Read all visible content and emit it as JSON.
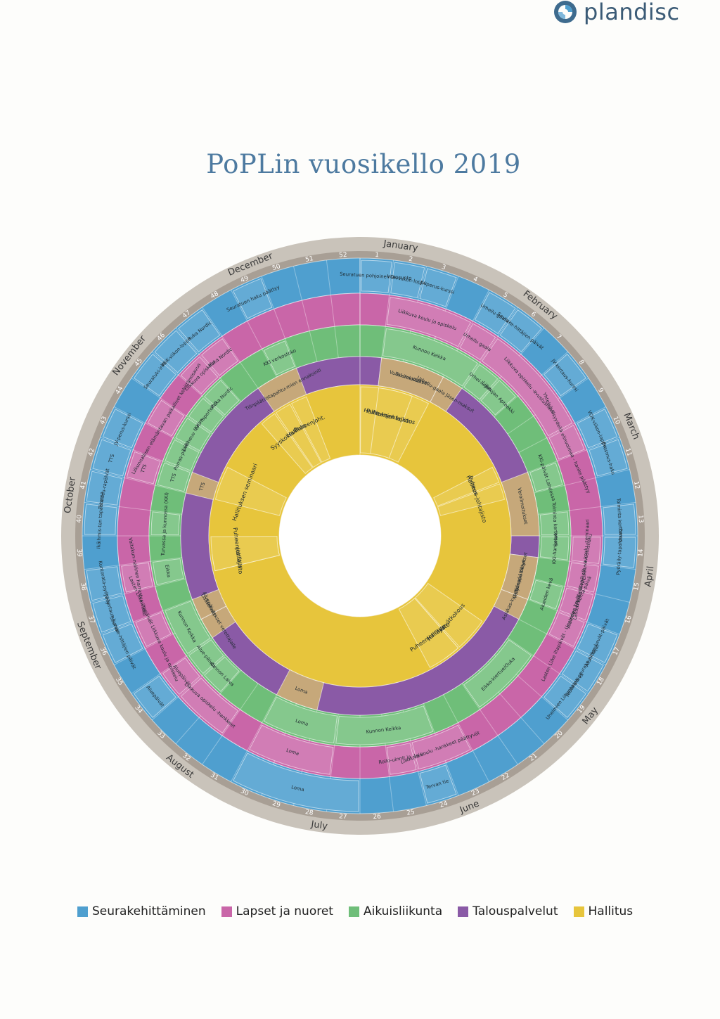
{
  "brand": {
    "name": "plandisc"
  },
  "title": "PoPLin vuosikello 2019",
  "colors": {
    "blue": "#4f9fcf",
    "pink": "#c966a8",
    "green": "#6fbe79",
    "purple": "#8a5aa6",
    "tan": "#c6a87a",
    "yellow": "#e7c53c",
    "rim": "#b7b0a6"
  },
  "months": [
    "January",
    "February",
    "March",
    "April",
    "May",
    "June",
    "July",
    "August",
    "September",
    "October",
    "November",
    "December"
  ],
  "weeks": [
    "1",
    "2",
    "3",
    "4",
    "5",
    "6",
    "7",
    "8",
    "9",
    "10",
    "11",
    "12",
    "13",
    "14",
    "15",
    "16",
    "17",
    "18",
    "19",
    "20",
    "21",
    "22",
    "23",
    "24",
    "25",
    "26",
    "27",
    "28",
    "29",
    "30",
    "31",
    "32",
    "33",
    "34",
    "35",
    "36",
    "37",
    "38",
    "39",
    "40",
    "41",
    "42",
    "43",
    "44",
    "45",
    "46",
    "47",
    "48",
    "49",
    "50",
    "51",
    "52"
  ],
  "rings": {
    "blue": [
      {
        "text": "Seuratuen pohjoinen lausunto",
        "start": 0,
        "end": 1
      },
      {
        "text": "VOK-viikon-loppu",
        "start": 1,
        "end": 2
      },
      {
        "text": "JV-perus-kurssi",
        "start": 2,
        "end": 3
      },
      {
        "text": "Urheilu-gaala",
        "start": 4,
        "end": 5
      },
      {
        "text": "Seurake-hittäjien päivät",
        "start": 5,
        "end": 6
      },
      {
        "text": "JV-kertaus-kurssi",
        "start": 7,
        "end": 8
      },
      {
        "text": "VOK-viikon-loppu",
        "start": 9,
        "end": 10
      },
      {
        "text": "Erasmus-haku",
        "start": 10,
        "end": 11
      },
      {
        "text": "Toiminta kertomus",
        "start": 12,
        "end": 13
      },
      {
        "text": "Pyöräily-tapahtuma",
        "start": 13,
        "end": 14
      },
      {
        "text": "Alueiden kevät-päivät",
        "start": 16,
        "end": 17
      },
      {
        "text": "Alueiden seurake-hittäjät",
        "start": 17,
        "end": 18
      },
      {
        "text": "Unelmien Liikunta-päivä",
        "start": 18,
        "end": 19
      },
      {
        "text": "Tervan tie",
        "start": 23,
        "end": 24
      },
      {
        "text": "Loma",
        "start": 26,
        "end": 30
      },
      {
        "text": "Aluepäivät",
        "start": 33,
        "end": 34
      },
      {
        "text": "Seurake-hittäjien päivät",
        "start": 35,
        "end": 36
      },
      {
        "text": "JV-kertaus-kurssi",
        "start": 36,
        "end": 37
      },
      {
        "text": "Kuntorata-pyöräily",
        "start": 37,
        "end": 38
      },
      {
        "text": "Ikäihmis-ten tapahtuma",
        "start": 39,
        "end": 40
      },
      {
        "text": "Tähtiseu-rapäivät",
        "start": 40,
        "end": 41
      },
      {
        "text": "TTS",
        "start": 41,
        "end": 42
      },
      {
        "text": "JV-perus-kurssi",
        "start": 42,
        "end": 43
      },
      {
        "text": "Seuratuki-info",
        "start": 44,
        "end": 45
      },
      {
        "text": "VOK-viikon-loppu",
        "start": 45,
        "end": 46
      },
      {
        "text": "Ruka Nordic",
        "start": 46,
        "end": 47
      },
      {
        "text": "Seuratuen haku päättyy",
        "start": 48,
        "end": 49
      }
    ],
    "pink": [
      {
        "text": "Liikkuva koulu ja opiskelu",
        "start": 1,
        "end": 4
      },
      {
        "text": "Urheilu gaala",
        "start": 4,
        "end": 5
      },
      {
        "text": "Liikkuva opiskelu -avustushaku",
        "start": 5,
        "end": 9
      },
      {
        "text": "Yhteisö-llisyydellä elinvoimaa - hanke päättyy",
        "start": 9,
        "end": 10
      },
      {
        "text": "Liikkuva koulu -seminaari",
        "start": 13,
        "end": 14
      },
      {
        "text": "Lasten Liike iltapäivät - avustushaku",
        "start": 14,
        "end": 15
      },
      {
        "text": "Alueiden kevät-päivät",
        "start": 15,
        "end": 16
      },
      {
        "text": "Lasten Liike iltapäivät - Unelmien Liikunta-päivä",
        "start": 16,
        "end": 17
      },
      {
        "text": "Liikkuva koulu -hankkeet päättyvät",
        "start": 22,
        "end": 24
      },
      {
        "text": "Rollo-uinnit ja -leiri",
        "start": 24,
        "end": 25
      },
      {
        "text": "Loma",
        "start": 27,
        "end": 30
      },
      {
        "text": "Liikkuva opiskelu -hankkeet",
        "start": 31,
        "end": 33
      },
      {
        "text": "Aluepäivät",
        "start": 33,
        "end": 34
      },
      {
        "text": "Lasten Liike iltapäivät Liikkuva koulu ja opiskelu",
        "start": 35,
        "end": 36
      },
      {
        "text": "Valtakun-nallinen harrastusviikko",
        "start": 37,
        "end": 38
      },
      {
        "text": "TTS",
        "start": 41,
        "end": 42
      },
      {
        "text": "Liikunnallisen elämäntavan paikalliset kehittämisavus",
        "start": 43,
        "end": 44
      },
      {
        "text": "Liikkuva opiskelu",
        "start": 45,
        "end": 46
      },
      {
        "text": "Ruka Nordic",
        "start": 46,
        "end": 47
      }
    ],
    "green": [
      {
        "text": "Kunnon Keikka",
        "start": 1,
        "end": 5
      },
      {
        "text": "Urhei-lugaa",
        "start": 5,
        "end": 6
      },
      {
        "text": "Liikkujan Apteekki",
        "start": 6,
        "end": 7
      },
      {
        "text": "KKI-päivät Lahdessa",
        "start": 10,
        "end": 11
      },
      {
        "text": "Toiminta kertomus",
        "start": 12,
        "end": 13
      },
      {
        "text": "KKI-hanketuki",
        "start": 13,
        "end": 14
      },
      {
        "text": "Alueiden kevä",
        "start": 15,
        "end": 16
      },
      {
        "text": "Eikka-kiertue/Ouka",
        "start": 18,
        "end": 21
      },
      {
        "text": "Kunnon Keikka",
        "start": 23,
        "end": 27
      },
      {
        "text": "Loma",
        "start": 27,
        "end": 30
      },
      {
        "text": "Kunnon Laiva",
        "start": 32,
        "end": 33
      },
      {
        "text": "Alue-päivät",
        "start": 33,
        "end": 34
      },
      {
        "text": "Kunnon Keikka",
        "start": 34,
        "end": 36
      },
      {
        "text": "Eikka",
        "start": 37,
        "end": 38
      },
      {
        "text": "Turvassa ja kunnossa (KKI)",
        "start": 39,
        "end": 40
      },
      {
        "text": "TTS",
        "start": 41,
        "end": 42
      },
      {
        "text": "Porras-päivät",
        "start": 42,
        "end": 43
      },
      {
        "text": "Liik.neuv forum",
        "start": 43,
        "end": 44
      },
      {
        "text": "KKI-raportointi",
        "start": 44,
        "end": 45
      },
      {
        "text": "Ruka Nordic",
        "start": 45,
        "end": 46
      },
      {
        "text": "KKI verkostoko",
        "start": 48,
        "end": 49
      }
    ],
    "tan": [
      {
        "text": "Tulorekisteri",
        "start": 1,
        "end": 4
      },
      {
        "text": "Vuosi-ilmoitukset",
        "start": 1,
        "end": 4
      },
      {
        "text": "Urheilu-gaala Jäsen-maksut",
        "start": 4,
        "end": 5
      },
      {
        "text": "Veroilmoitukset",
        "start": 10,
        "end": 13
      },
      {
        "text": "Valtionapu tilitykset",
        "start": 14,
        "end": 16
      },
      {
        "text": "Tilinpäätökset",
        "start": 14,
        "end": 16
      },
      {
        "text": "Asiakas-kysely",
        "start": 16,
        "end": 17
      },
      {
        "text": "Lisäselvitykset verottajalle",
        "start": 34,
        "end": 35
      },
      {
        "text": "Aluepäivät",
        "start": 35,
        "end": 36
      },
      {
        "text": "Loma",
        "start": 28,
        "end": 30
      },
      {
        "text": "TTS",
        "start": 41,
        "end": 42
      },
      {
        "text": "Tilinpäätöstapahtu-mien ennakointi",
        "start": 47,
        "end": 49
      }
    ],
    "yellow": [
      {
        "text": "Puheenjohtajisto",
        "start": 0,
        "end": 4
      },
      {
        "text": "Hallituksen kokous",
        "start": 1,
        "end": 3
      },
      {
        "text": "Hallitus",
        "start": 9,
        "end": 10
      },
      {
        "text": "Puheen-johtajisto",
        "start": 10,
        "end": 11
      },
      {
        "text": "Kevätkokous",
        "start": 18,
        "end": 20
      },
      {
        "text": "Hallitus",
        "start": 20,
        "end": 21
      },
      {
        "text": "Puheenjohtajisto",
        "start": 20,
        "end": 22
      },
      {
        "text": "Hallitus",
        "start": 37,
        "end": 38
      },
      {
        "text": "Puheenjohtajisto",
        "start": 37,
        "end": 39
      },
      {
        "text": "Hallituksen seminaari",
        "start": 41,
        "end": 43
      },
      {
        "text": "Syyskokous",
        "start": 46,
        "end": 47
      },
      {
        "text": "Hallitus",
        "start": 47,
        "end": 48
      },
      {
        "text": "Puheenjoht.",
        "start": 48,
        "end": 49
      }
    ]
  },
  "legend": [
    {
      "label": "Seurakehittäminen",
      "color": "#4f9fcf"
    },
    {
      "label": "Lapset ja nuoret",
      "color": "#c966a8"
    },
    {
      "label": "Aikuisliikunta",
      "color": "#6fbe79"
    },
    {
      "label": "Talouspalvelut",
      "color": "#8a5aa6"
    },
    {
      "label": "Hallitus",
      "color": "#e7c53c"
    }
  ]
}
